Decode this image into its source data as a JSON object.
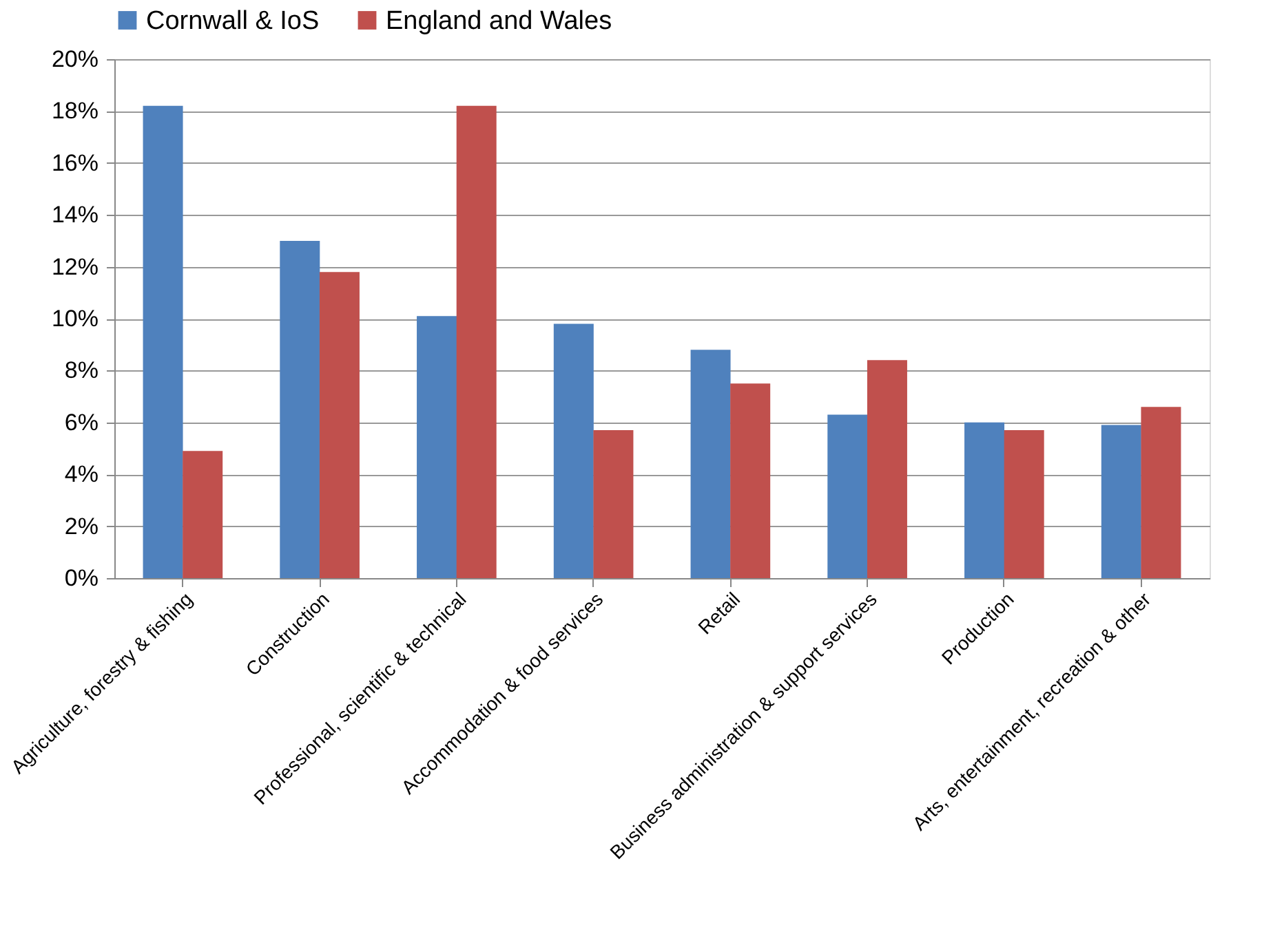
{
  "chart_data": {
    "type": "bar",
    "categories": [
      "Agriculture, forestry & fishing",
      "Construction",
      "Professional, scientific & technical",
      "Accommodation & food services",
      "Retail",
      "Business administration & support services",
      "Production",
      "Arts, entertainment, recreation & other"
    ],
    "series": [
      {
        "name": "Cornwall & IoS",
        "color": "#4f81bd",
        "values": [
          18.2,
          13.0,
          10.1,
          9.8,
          8.8,
          6.3,
          6.0,
          5.9
        ]
      },
      {
        "name": "England and Wales",
        "color": "#c0504d",
        "values": [
          4.9,
          11.8,
          18.2,
          5.7,
          7.5,
          8.4,
          5.7,
          6.6
        ]
      }
    ],
    "ylim": [
      0,
      20
    ],
    "yticks": [
      {
        "value": 0,
        "label": "0%"
      },
      {
        "value": 2,
        "label": "2%"
      },
      {
        "value": 4,
        "label": "4%"
      },
      {
        "value": 6,
        "label": "6%"
      },
      {
        "value": 8,
        "label": "8%"
      },
      {
        "value": 10,
        "label": "10%"
      },
      {
        "value": 12,
        "label": "12%"
      },
      {
        "value": 14,
        "label": "14%"
      },
      {
        "value": 16,
        "label": "16%"
      },
      {
        "value": 18,
        "label": "18%"
      },
      {
        "value": 20,
        "label": "20%"
      }
    ],
    "grid": "y",
    "legend": "top"
  }
}
